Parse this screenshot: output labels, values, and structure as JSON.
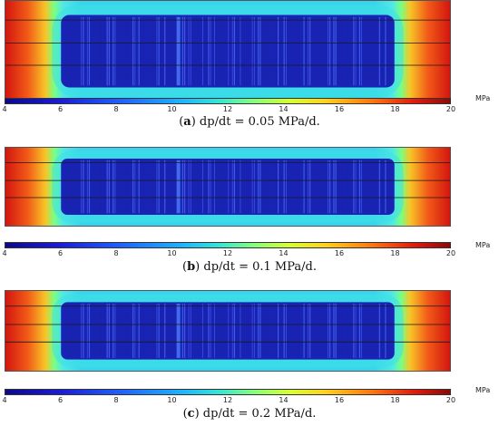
{
  "colorbar": {
    "ticks": [
      "4",
      "6",
      "8",
      "10",
      "12",
      "14",
      "16",
      "18",
      "20"
    ],
    "unit": "MPa",
    "range": [
      4,
      20
    ]
  },
  "panels": [
    {
      "label": "a",
      "caption_text": " dp/dt = 0.05 MPa/d."
    },
    {
      "label": "b",
      "caption_text": " dp/dt = 0.1 MPa/d."
    },
    {
      "label": "c",
      "caption_text": " dp/dt = 0.2 MPa/d."
    }
  ],
  "colors": {
    "low": "#0a0a8c",
    "mid": "#34e6d6",
    "high": "#8a0a0a"
  }
}
